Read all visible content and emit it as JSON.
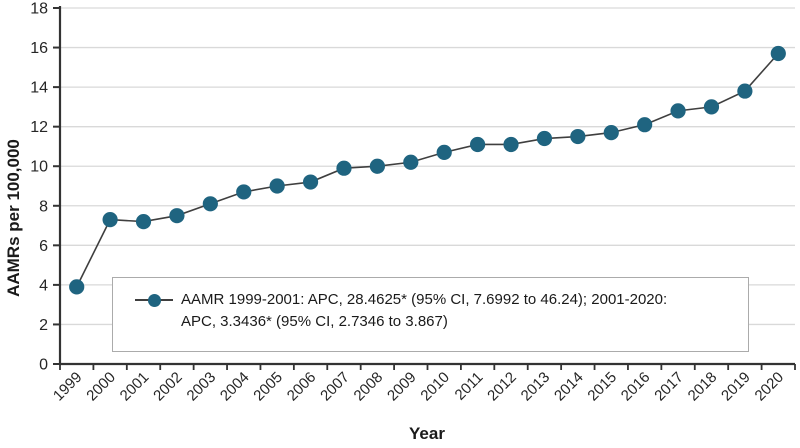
{
  "figure": {
    "background": "#ffffff",
    "text_color": "#262626"
  },
  "chart_data": {
    "type": "line",
    "title": "",
    "xlabel": "Year",
    "ylabel": "AAMRs per 100,000",
    "categories": [
      "1999",
      "2000",
      "2001",
      "2002",
      "2003",
      "2004",
      "2005",
      "2006",
      "2007",
      "2008",
      "2009",
      "2010",
      "2011",
      "2012",
      "2013",
      "2014",
      "2015",
      "2016",
      "2017",
      "2018",
      "2019",
      "2020"
    ],
    "series": [
      {
        "name": "AAMR",
        "values": [
          3.9,
          7.3,
          7.2,
          7.5,
          8.1,
          8.7,
          9.0,
          9.2,
          9.9,
          10.0,
          10.2,
          10.7,
          11.1,
          11.1,
          11.4,
          11.5,
          11.7,
          12.1,
          12.8,
          13.0,
          13.8,
          15.7
        ],
        "marker_color": "#1f6480",
        "line_color": "#3f3f3f"
      }
    ],
    "ylim": [
      0,
      18
    ],
    "yticks": [
      0,
      2,
      4,
      6,
      8,
      10,
      12,
      14,
      16,
      18
    ],
    "grid": "horizontal",
    "gridline_color": "#d9d9d9",
    "axis_color": "#333333",
    "legend_position": "inside-bottom-left",
    "legend": {
      "line1": "AAMR 1999-2001: APC, 28.4625* (95% CI, 7.6992 to 46.24); 2001-2020:",
      "line2": "APC, 3.3436* (95% CI, 2.7346 to 3.867)"
    }
  }
}
